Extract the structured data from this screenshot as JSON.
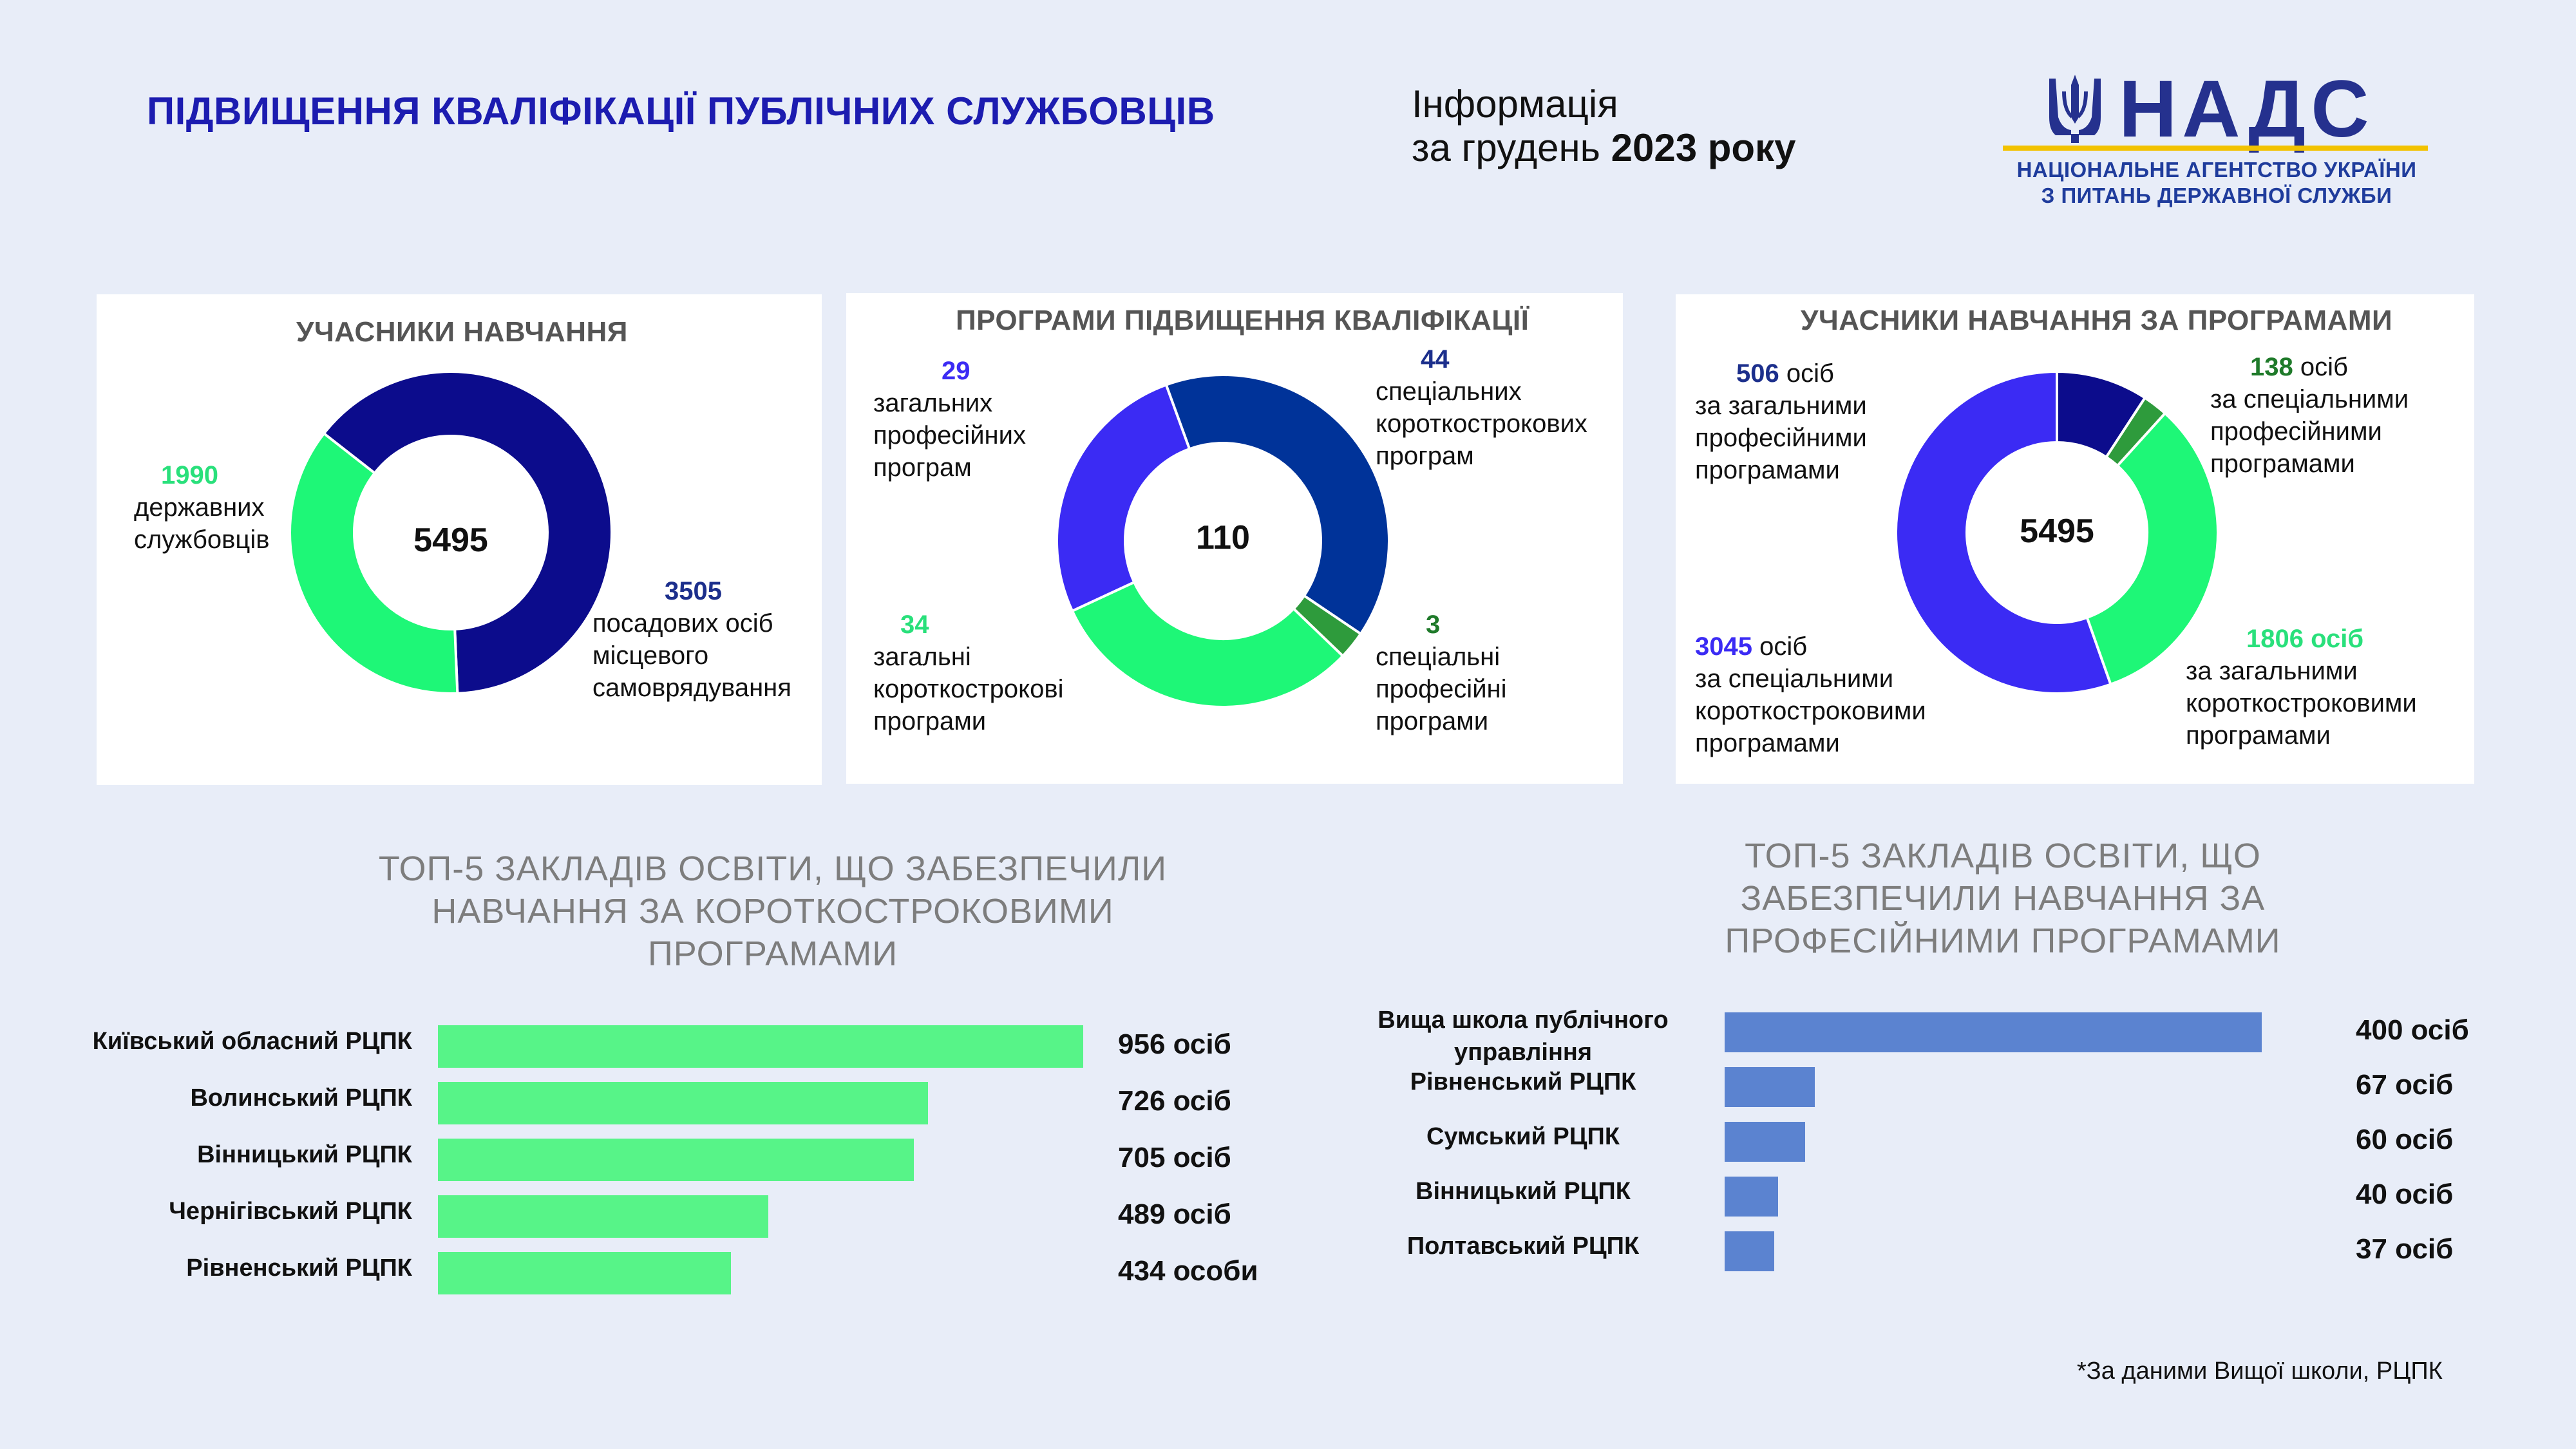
{
  "header": {
    "title": "ПІДВИЩЕННЯ КВАЛІФІКАЦІЇ ПУБЛІЧНИХ СЛУЖБОВЦІВ",
    "info_line1": "Інформація",
    "info_line2_prefix": "за грудень",
    "info_line2_year": "2023 року"
  },
  "logo": {
    "name": "НАДС",
    "subtitle_line1": "НАЦІОНАЛЬНЕ АГЕНТСТВО УКРАЇНИ",
    "subtitle_line2": "З ПИТАНЬ ДЕРЖАВНОЇ СЛУЖБИ",
    "emblem_icon": "trident-icon",
    "colors": {
      "text": "#25318e",
      "accent": "#f2c200"
    }
  },
  "colors": {
    "navy": "#0c0c8c",
    "green": "#1ef777",
    "royal": "#003399",
    "violet": "#3b2bf4",
    "darkgreen": "#2e9b3c",
    "bar_green": "#57f488",
    "bar_blue": "#5b83d0"
  },
  "chart_data": [
    {
      "type": "pie",
      "title": "УЧАСНИКИ НАВЧАННЯ",
      "center": "5495",
      "slices": [
        {
          "value": "3505",
          "label_lines": [
            "посадових осіб",
            "місцевого",
            "самоврядування"
          ],
          "value_color": "#1c2f8c",
          "color": "#0c0c8c"
        },
        {
          "value": "1990",
          "label_lines": [
            "державних",
            "службовців"
          ],
          "value_color": "#29e07b",
          "color": "#1ef777"
        }
      ]
    },
    {
      "type": "pie",
      "title": "ПРОГРАМИ ПІДВИЩЕННЯ КВАЛІФІКАЦІЇ",
      "center": "110",
      "slices": [
        {
          "value": "44",
          "label_lines": [
            "спеціальних",
            "короткострокових",
            "програм"
          ],
          "value_color": "#1c2f8c",
          "color": "#003399"
        },
        {
          "value": "3",
          "label_lines": [
            "спеціальні",
            "професійні",
            "програми"
          ],
          "value_color": "#1f7a2a",
          "color": "#2e9b3c"
        },
        {
          "value": "34",
          "label_lines": [
            "загальні",
            "короткострокові",
            "програми"
          ],
          "value_color": "#29e07b",
          "color": "#1ef777"
        },
        {
          "value": "29",
          "label_lines": [
            "загальних",
            "професійних",
            "програм"
          ],
          "value_color": "#3b2bf4",
          "color": "#3b2bf4"
        }
      ]
    },
    {
      "type": "pie",
      "title": "УЧАСНИКИ НАВЧАННЯ ЗА ПРОГРАМАМИ",
      "center": "5495",
      "slices": [
        {
          "value": "506",
          "unit": "осіб",
          "label_lines": [
            "за загальними",
            "професійними",
            "програмами"
          ],
          "value_color": "#1c2f8c",
          "color": "#0c0c8c"
        },
        {
          "value": "138",
          "unit": "осіб",
          "label_lines": [
            "за спеціальними",
            "професійними",
            "програмами"
          ],
          "value_color": "#1f7a2a",
          "color": "#2e9b3c"
        },
        {
          "value": "1806",
          "unit": "осіб",
          "label_lines": [
            "за загальними",
            "короткостроковими",
            "програмами"
          ],
          "value_color": "#29e07b",
          "color": "#1ef777"
        },
        {
          "value": "3045",
          "unit": "осіб",
          "label_lines": [
            "за спеціальними",
            "короткостроковими",
            "програмами"
          ],
          "value_color": "#3b2bf4",
          "color": "#3b2bf4"
        }
      ]
    },
    {
      "type": "bar",
      "title_lines": [
        "ТОП-5 ЗАКЛАДІВ ОСВІТИ, ЩО ЗАБЕЗПЕЧИЛИ",
        "НАВЧАННЯ ЗА КОРОТКОСТРОКОВИМИ",
        "ПРОГРАМАМИ"
      ],
      "categories": [
        "Київський обласний РЦПК",
        "Волинський РЦПК",
        "Вінницький РЦПК",
        "Чернігівський РЦПК",
        "Рівненський РЦПК"
      ],
      "values": [
        956,
        726,
        705,
        489,
        434
      ],
      "value_labels": [
        "956 осіб",
        "726 осіб",
        "705 осіб",
        "489 осіб",
        "434 особи"
      ],
      "color": "#57f488"
    },
    {
      "type": "bar",
      "title_lines": [
        "ТОП-5 ЗАКЛАДІВ ОСВІТИ, ЩО",
        "ЗАБЕЗПЕЧИЛИ НАВЧАННЯ ЗА",
        "ПРОФЕСІЙНИМИ ПРОГРАМАМИ"
      ],
      "categories": [
        "Вища школа публічного управління",
        "Рівненський РЦПК",
        "Сумський РЦПК",
        "Вінницький РЦПК",
        "Полтавський РЦПК"
      ],
      "category_lines": [
        [
          "Вища школа публічного",
          "управління"
        ],
        [
          "Рівненський РЦПК"
        ],
        [
          "Сумський РЦПК"
        ],
        [
          "Вінницький РЦПК"
        ],
        [
          "Полтавський РЦПК"
        ]
      ],
      "values": [
        400,
        67,
        60,
        40,
        37
      ],
      "value_labels": [
        "400 осіб",
        "67 осіб",
        "60 осіб",
        "40 осіб",
        "37 осіб"
      ],
      "color": "#5b83d0"
    }
  ],
  "footnote": "*За даними Вищої школи, РЦПК"
}
